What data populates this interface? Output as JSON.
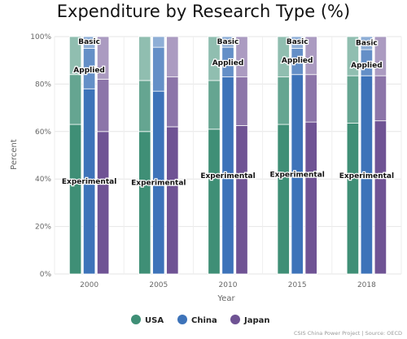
{
  "chart_data": {
    "type": "bar",
    "title": "Expenditure by Research Type (%)",
    "xlabel": "Year",
    "ylabel": "Percent",
    "ylim": [
      0,
      100
    ],
    "yticks": [
      "0%",
      "20%",
      "40%",
      "60%",
      "80%",
      "100%"
    ],
    "categories": [
      "2000",
      "2005",
      "2010",
      "2015",
      "2018"
    ],
    "stack_segments": [
      "Experimental",
      "Applied",
      "Basic"
    ],
    "grid": true,
    "legend_position": "bottom",
    "series": [
      {
        "name": "USA",
        "color": "#3f8f76",
        "experimental": [
          63,
          60,
          61,
          63,
          63.5
        ],
        "applied": [
          21,
          21.5,
          20.5,
          20,
          20
        ],
        "basic": [
          16,
          18.5,
          18.5,
          17,
          16.5
        ]
      },
      {
        "name": "China",
        "color": "#3d73b9",
        "experimental": [
          78,
          77,
          83,
          84,
          83.5
        ],
        "applied": [
          17,
          18.5,
          12.5,
          11,
          11
        ],
        "basic": [
          5,
          4.5,
          4.5,
          5,
          5.5
        ]
      },
      {
        "name": "Japan",
        "color": "#6f5394",
        "experimental": [
          60,
          62,
          62.5,
          64,
          64.5
        ],
        "applied": [
          22,
          21,
          20.5,
          20,
          19
        ],
        "basic": [
          18,
          17,
          17,
          16,
          16.5
        ]
      }
    ],
    "segment_labels": [
      {
        "text": "Basic",
        "category": "2000",
        "y": 98
      },
      {
        "text": "Applied",
        "category": "2000",
        "y": 86
      },
      {
        "text": "Experimental",
        "category": "2000",
        "y": 39
      },
      {
        "text": "Experimental",
        "category": "2005",
        "y": 38.5
      },
      {
        "text": "Basic",
        "category": "2010",
        "y": 98
      },
      {
        "text": "Applied",
        "category": "2010",
        "y": 89
      },
      {
        "text": "Experimental",
        "category": "2010",
        "y": 41.5
      },
      {
        "text": "Basic",
        "category": "2015",
        "y": 98
      },
      {
        "text": "Applied",
        "category": "2015",
        "y": 90
      },
      {
        "text": "Experimental",
        "category": "2015",
        "y": 42
      },
      {
        "text": "Basic",
        "category": "2018",
        "y": 97.5
      },
      {
        "text": "Applied",
        "category": "2018",
        "y": 88
      },
      {
        "text": "Experimental",
        "category": "2018",
        "y": 41.5
      }
    ]
  },
  "source": "CSIS China Power Project | Source: OECD"
}
